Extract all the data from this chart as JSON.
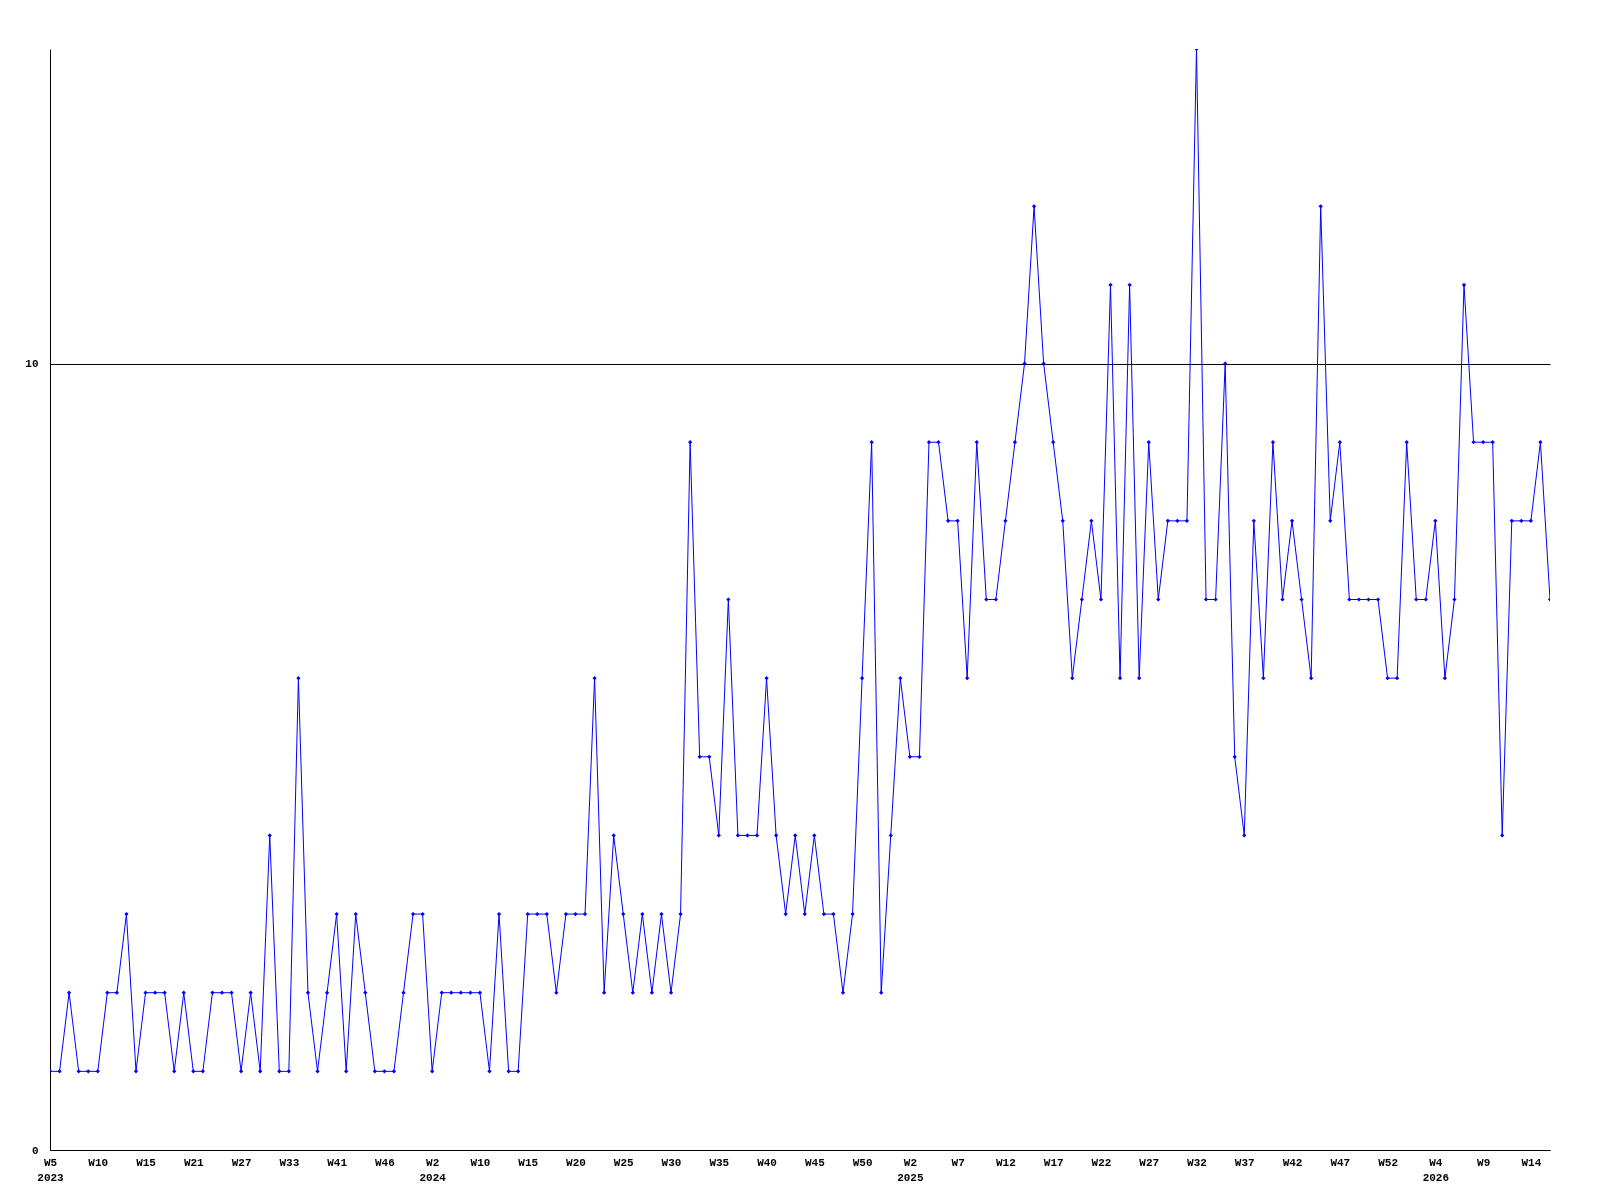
{
  "chart_data": {
    "type": "line",
    "categories": [
      "W5\n2023",
      null,
      null,
      null,
      null,
      "W10",
      null,
      null,
      null,
      null,
      "W15",
      null,
      null,
      null,
      null,
      "W21",
      null,
      null,
      null,
      null,
      "W27",
      null,
      null,
      null,
      null,
      "W33",
      null,
      null,
      null,
      null,
      "W41",
      null,
      null,
      null,
      null,
      "W46",
      null,
      null,
      null,
      null,
      "W2\n2024",
      null,
      null,
      null,
      null,
      "W10",
      null,
      null,
      null,
      null,
      "W15",
      null,
      null,
      null,
      null,
      "W20",
      null,
      null,
      null,
      null,
      "W25",
      null,
      null,
      null,
      null,
      "W30",
      null,
      null,
      null,
      null,
      "W35",
      null,
      null,
      null,
      null,
      "W40",
      null,
      null,
      null,
      null,
      "W45",
      null,
      null,
      null,
      null,
      "W50",
      null,
      null,
      null,
      null,
      "W2\n2025",
      null,
      null,
      null,
      null,
      "W7",
      null,
      null,
      null,
      null,
      "W12",
      null,
      null,
      null,
      null,
      "W17",
      null,
      null,
      null,
      null,
      "W22",
      null,
      null,
      null,
      null,
      "W27",
      null,
      null,
      null,
      null,
      "W32",
      null,
      null,
      null,
      null,
      "W37",
      null,
      null,
      null,
      null,
      "W42",
      null,
      null,
      null,
      null,
      "W47",
      null,
      null,
      null,
      null,
      "W52",
      null,
      null,
      null,
      null,
      "W4\n2026",
      null,
      null,
      null,
      null,
      "W9",
      null,
      null,
      null,
      null,
      "W14",
      null,
      null
    ],
    "series": [
      {
        "color": "#0000ff",
        "values": [
          1,
          1,
          2,
          1,
          1,
          1,
          2,
          2,
          3,
          1,
          2,
          2,
          2,
          1,
          2,
          1,
          1,
          2,
          2,
          2,
          1,
          2,
          1,
          4,
          1,
          1,
          6,
          2,
          1,
          2,
          3,
          1,
          3,
          2,
          1,
          1,
          1,
          2,
          3,
          3,
          1,
          2,
          2,
          2,
          2,
          2,
          1,
          3,
          1,
          1,
          3,
          3,
          3,
          2,
          3,
          3,
          3,
          6,
          2,
          4,
          3,
          2,
          3,
          2,
          3,
          2,
          3,
          9,
          5,
          5,
          4,
          7,
          4,
          4,
          4,
          6,
          4,
          3,
          4,
          3,
          4,
          3,
          3,
          2,
          3,
          6,
          9,
          2,
          4,
          6,
          5,
          5,
          9,
          9,
          8,
          8,
          6,
          9,
          7,
          7,
          8,
          9,
          10,
          12,
          10,
          9,
          8,
          6,
          7,
          8,
          7,
          11,
          6,
          11,
          6,
          9,
          7,
          8,
          8,
          8,
          14,
          7,
          7,
          10,
          5,
          4,
          8,
          6,
          9,
          7,
          8,
          7,
          6,
          12,
          8,
          9,
          7,
          7,
          7,
          7,
          6,
          6,
          9,
          7,
          7,
          8,
          6,
          7,
          11,
          9,
          9,
          9,
          4,
          8,
          8,
          8,
          9,
          7
        ]
      }
    ],
    "ylim": [
      0,
      14
    ],
    "yticks": [
      0,
      10
    ],
    "grid": "y",
    "marker": "diamond",
    "line_style": "solid"
  }
}
